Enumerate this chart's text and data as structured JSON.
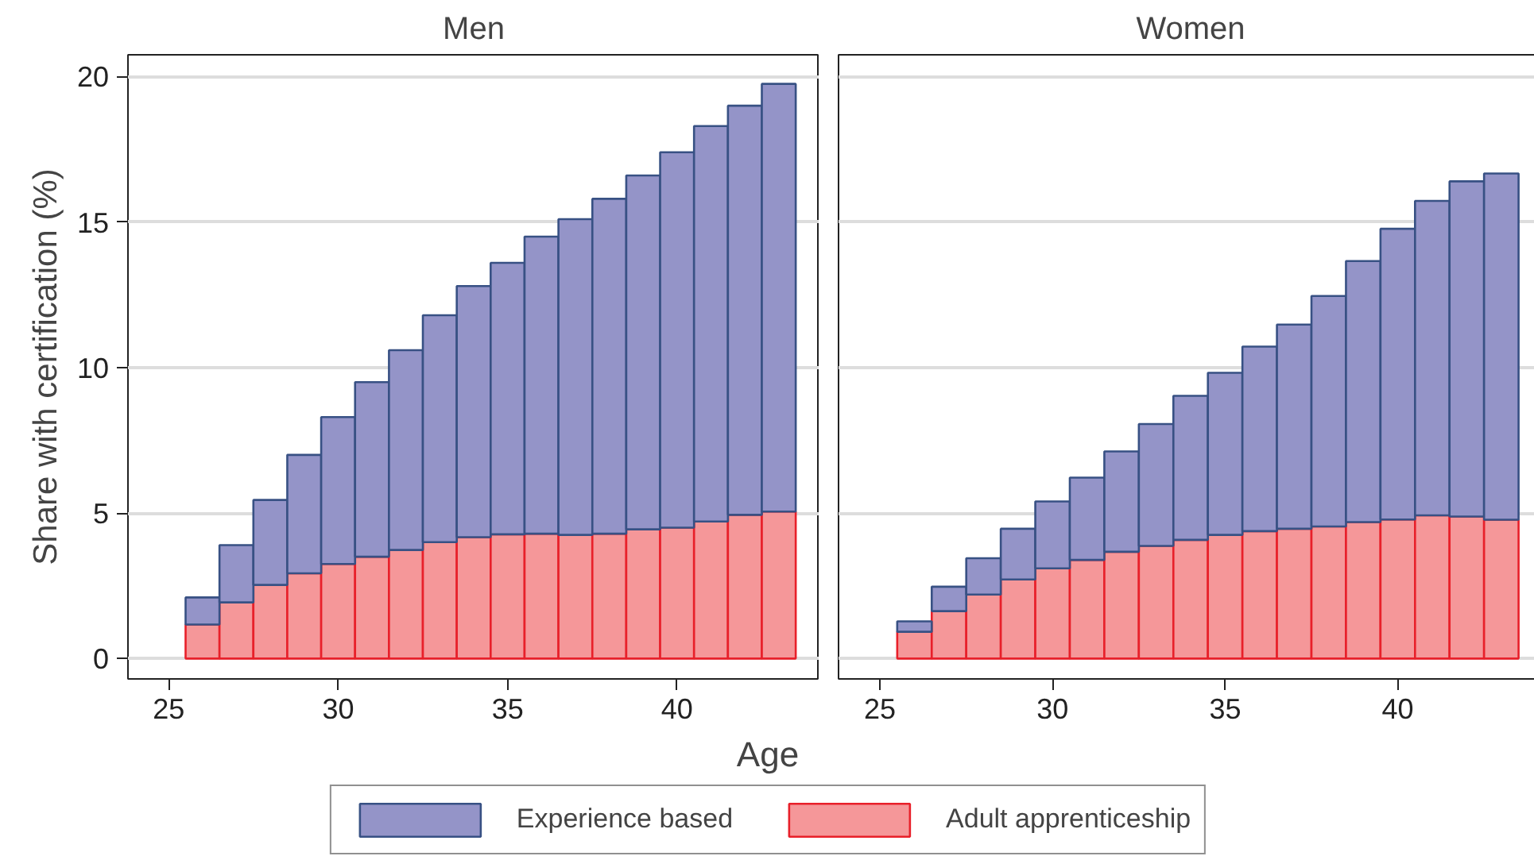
{
  "chart_data": [
    {
      "type": "bar",
      "stacked": true,
      "title": "Men",
      "xlabel": "Age",
      "ylabel": "Share with certification (%)",
      "legend": "bottom",
      "grid": "y",
      "x": [
        26,
        27,
        28,
        29,
        30,
        31,
        32,
        33,
        34,
        35,
        36,
        37,
        38,
        39,
        40,
        41,
        42,
        43
      ],
      "xlim": [
        23.8,
        44.2
      ],
      "xticks": [
        25,
        30,
        35,
        40
      ],
      "ylim": [
        -0.7,
        20.75
      ],
      "yticks": [
        0,
        5,
        10,
        15,
        20
      ],
      "series": [
        {
          "name": "Adult apprenticeship",
          "color": "#f59799",
          "values": [
            1.17,
            1.93,
            2.53,
            2.93,
            3.25,
            3.5,
            3.73,
            4.0,
            4.17,
            4.27,
            4.29,
            4.25,
            4.29,
            4.44,
            4.5,
            4.71,
            4.94,
            5.05
          ]
        },
        {
          "name": "Experience based",
          "color": "#9494c8",
          "values": [
            0.93,
            1.97,
            2.92,
            4.07,
            5.05,
            6.0,
            6.87,
            7.8,
            8.63,
            9.33,
            10.21,
            10.85,
            11.51,
            12.16,
            12.9,
            13.59,
            14.06,
            14.7
          ]
        }
      ]
    },
    {
      "type": "bar",
      "stacked": true,
      "title": "Women",
      "grid": "y",
      "tick_labels": "x",
      "x": [
        26,
        27,
        28,
        29,
        30,
        31,
        32,
        33,
        34,
        35,
        36,
        37,
        38,
        39,
        40,
        41,
        42,
        43
      ],
      "xlim": [
        23.8,
        44.2
      ],
      "xticks": [
        25,
        30,
        35,
        40
      ],
      "ylim": [
        -0.7,
        20.75
      ],
      "yticks": [
        0,
        5,
        10,
        15,
        20
      ],
      "series": [
        {
          "color": "#f59799",
          "values": [
            0.92,
            1.63,
            2.2,
            2.72,
            3.1,
            3.39,
            3.67,
            3.87,
            4.08,
            4.25,
            4.38,
            4.46,
            4.54,
            4.69,
            4.78,
            4.92,
            4.88,
            4.77
          ]
        },
        {
          "color": "#9494c8",
          "values": [
            0.36,
            0.84,
            1.25,
            1.74,
            2.3,
            2.83,
            3.45,
            4.19,
            4.95,
            5.57,
            6.34,
            7.02,
            7.92,
            8.97,
            9.99,
            10.81,
            11.52,
            11.9
          ]
        }
      ]
    }
  ]
}
